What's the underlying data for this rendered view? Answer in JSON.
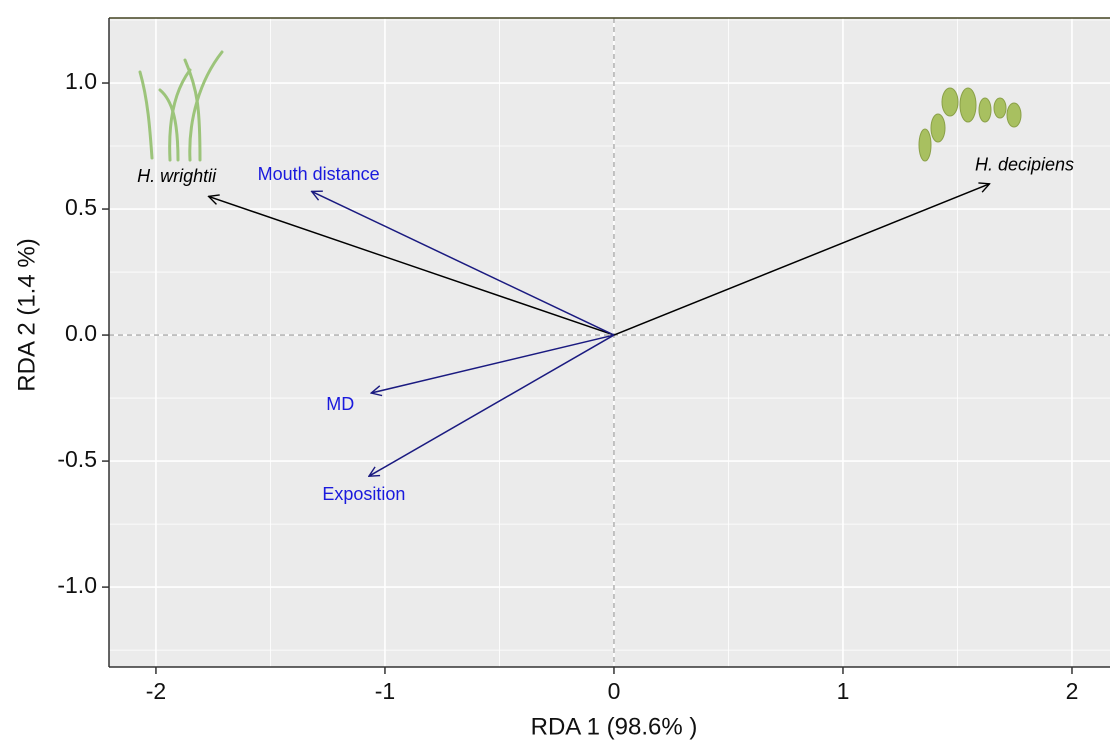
{
  "chart_data": {
    "type": "biplot",
    "xlabel": "RDA 1 (98.6% )",
    "ylabel": "RDA 2 (1.4 %)",
    "xlim": [
      -2.205,
      2.166
    ],
    "ylim": [
      -1.317,
      1.258
    ],
    "xticks": [
      -2,
      -1,
      0,
      1,
      2
    ],
    "yticks": [
      {
        "value": -1.0,
        "label": "-1.0"
      },
      {
        "value": -0.5,
        "label": "-0.5"
      },
      {
        "value": 0.0,
        "label": "0.0"
      },
      {
        "value": 0.5,
        "label": "0.5"
      },
      {
        "value": 1.0,
        "label": "1.0"
      }
    ],
    "grid": true,
    "vectors": [
      {
        "label": "H. wrightii",
        "x": -1.77,
        "y": 0.55,
        "color": "#000000",
        "italic": true
      },
      {
        "label": "H. decipiens",
        "x": 1.64,
        "y": 0.6,
        "color": "#000000",
        "italic": true
      },
      {
        "label": "Mouth distance",
        "x": -1.32,
        "y": 0.57,
        "color": "#1a1a80",
        "text_color": "#1a1add",
        "italic": false
      },
      {
        "label": "MD",
        "x": -1.06,
        "y": -0.23,
        "color": "#1a1a80",
        "text_color": "#1a1add",
        "italic": false
      },
      {
        "label": "Exposition",
        "x": -1.07,
        "y": -0.56,
        "color": "#1a1a80",
        "text_color": "#1a1add",
        "italic": false
      }
    ]
  }
}
